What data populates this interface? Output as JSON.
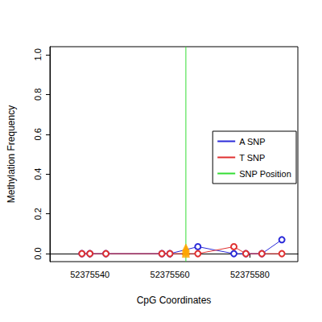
{
  "chart_data": {
    "type": "line",
    "x_label": "CpG Coordinates",
    "y_label": "Methylation Frequency",
    "xlim": [
      52375530,
      52375592
    ],
    "xticks": [
      52375540,
      52375560,
      52375580
    ],
    "ylim": [
      -0.04,
      1.04
    ],
    "yticks": [
      {
        "value": 0,
        "label": "0.0"
      },
      {
        "value": 0.2,
        "label": "0.2"
      },
      {
        "value": 0.4,
        "label": "0.4"
      },
      {
        "value": 0.6,
        "label": "0.6"
      },
      {
        "value": 0.8,
        "label": "0.8"
      },
      {
        "value": 1.0,
        "label": "1.0"
      }
    ],
    "grid": false,
    "legend": "right",
    "series": [
      {
        "name": "A SNP",
        "color": "#2b2bd9",
        "marker": "circle",
        "type": "line",
        "x": [
          52375538,
          52375540,
          52375544,
          52375558,
          52375560,
          52375567,
          52375576,
          52375579,
          52375583,
          52375588
        ],
        "values": [
          0,
          0,
          0,
          0,
          0,
          0.035,
          0,
          0,
          0,
          0.07
        ]
      },
      {
        "name": "T SNP",
        "color": "#e03030",
        "marker": "circle",
        "type": "line",
        "x": [
          52375538,
          52375540,
          52375544,
          52375558,
          52375560,
          52375567,
          52375576,
          52375579,
          52375583,
          52375588
        ],
        "values": [
          0,
          0,
          0,
          0,
          0,
          0,
          0.035,
          0,
          0,
          0
        ]
      },
      {
        "name": "SNP Position",
        "color": "#33dd33",
        "type": "vline",
        "x": [
          52375564
        ]
      },
      {
        "color": "#ffa500",
        "marker": "triangle",
        "type": "scatter",
        "x": [
          52375564,
          52375564,
          52375564,
          52375564
        ],
        "values": [
          0,
          0.01,
          0.02,
          0.03
        ]
      }
    ]
  }
}
